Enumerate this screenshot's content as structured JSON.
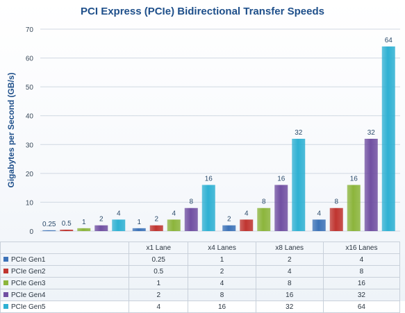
{
  "chart_data": {
    "type": "bar",
    "title": "PCI Express (PCIe) Bidirectional Transfer Speeds",
    "ylabel": "Gigabytes per Second (GB/s)",
    "xlabel": "",
    "ylim": [
      0,
      70
    ],
    "yticks": [
      0,
      10,
      20,
      30,
      40,
      50,
      60,
      70
    ],
    "grid": true,
    "legend": "data-table",
    "categories": [
      "x1 Lane",
      "x4 Lanes",
      "x8 Lanes",
      "x16 Lanes"
    ],
    "series": [
      {
        "name": "PCIe Gen1",
        "color": "#3d73b8",
        "values": [
          0.25,
          1,
          2,
          4
        ],
        "labels": [
          "0.25",
          "1",
          "2",
          "4"
        ]
      },
      {
        "name": "PCIe Gen2",
        "color": "#c03530",
        "values": [
          0.5,
          2,
          4,
          8
        ],
        "labels": [
          "0.5",
          "2",
          "4",
          "8"
        ]
      },
      {
        "name": "PCIe Gen3",
        "color": "#8cb53c",
        "values": [
          1,
          4,
          8,
          16
        ],
        "labels": [
          "1",
          "4",
          "8",
          "16"
        ]
      },
      {
        "name": "PCIe Gen4",
        "color": "#7150a2",
        "values": [
          2,
          8,
          16,
          32
        ],
        "labels": [
          "2",
          "8",
          "16",
          "32"
        ]
      },
      {
        "name": "PCIe Gen5",
        "color": "#2fb1d3",
        "values": [
          4,
          16,
          32,
          64
        ],
        "labels": [
          "4",
          "16",
          "32",
          "64"
        ]
      }
    ]
  },
  "colors": {
    "title": "#1e4f8a",
    "axis_label": "#1e4f8a",
    "tick_label": "#3a4a5a",
    "data_label": "#2a4a6a",
    "grid": "#d0d8e2"
  }
}
